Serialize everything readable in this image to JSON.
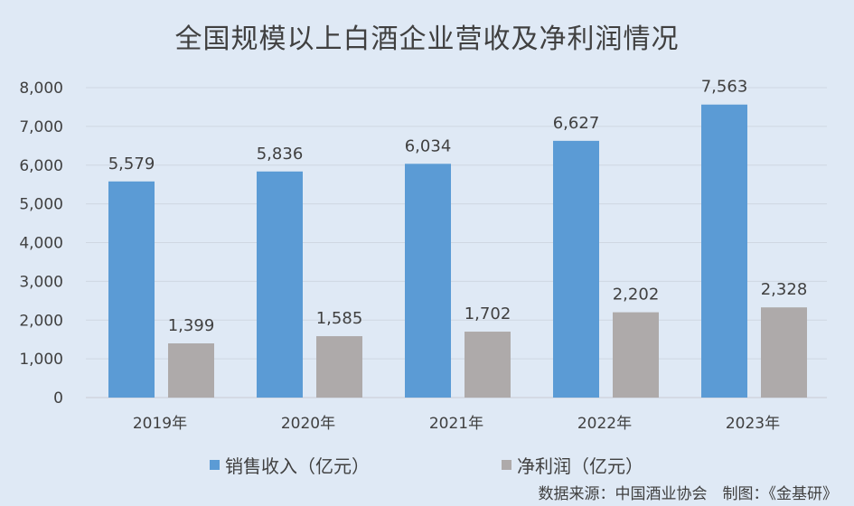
{
  "chart_data": {
    "type": "bar",
    "title": "全国规模以上白酒企业营收及净利润情况",
    "categories": [
      "2019年",
      "2020年",
      "2021年",
      "2022年",
      "2023年"
    ],
    "series": [
      {
        "name": "销售收入（亿元）",
        "color": "#5b9bd5",
        "values": [
          5579,
          5836,
          6034,
          6627,
          7563
        ],
        "labels": [
          "5,579",
          "5,836",
          "6,034",
          "6,627",
          "7,563"
        ]
      },
      {
        "name": "净利润（亿元）",
        "color": "#aeaaaa",
        "values": [
          1399,
          1585,
          1702,
          2202,
          2328
        ],
        "labels": [
          "1,399",
          "1,585",
          "1,702",
          "2,202",
          "2,328"
        ]
      }
    ],
    "ylim": [
      0,
      8000
    ],
    "yticks": [
      "0",
      "1,000",
      "2,000",
      "3,000",
      "4,000",
      "5,000",
      "6,000",
      "7,000",
      "8,000"
    ],
    "grid": true,
    "legend": "bottom",
    "source": "数据来源：中国酒业协会　制图：《金基研》"
  }
}
